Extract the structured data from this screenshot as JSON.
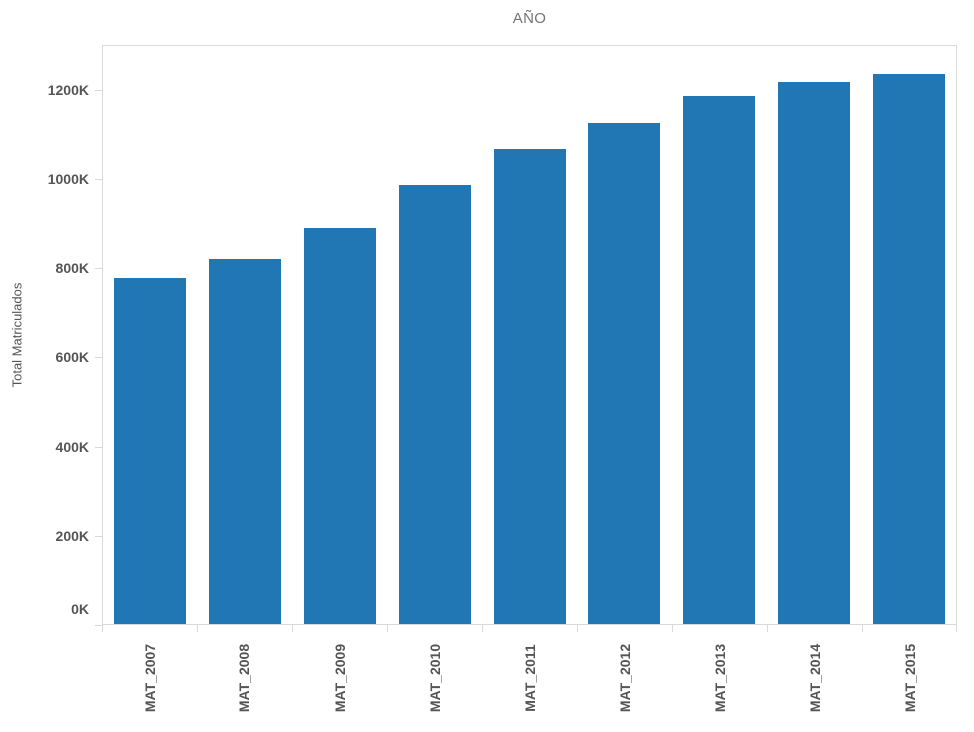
{
  "chart_data": {
    "type": "bar",
    "title": "AÑO",
    "xlabel": "",
    "ylabel": "Total Matriculados",
    "categories": [
      "MAT_2007",
      "MAT_2008",
      "MAT_2009",
      "MAT_2010",
      "MAT_2011",
      "MAT_2012",
      "MAT_2013",
      "MAT_2014",
      "MAT_2015"
    ],
    "values": [
      778000,
      820000,
      890000,
      987000,
      1069000,
      1127000,
      1188000,
      1218000,
      1236000
    ],
    "y_ticks": [
      {
        "value": 0,
        "label": "0K"
      },
      {
        "value": 200000,
        "label": "200K"
      },
      {
        "value": 400000,
        "label": "400K"
      },
      {
        "value": 600000,
        "label": "600K"
      },
      {
        "value": 800000,
        "label": "800K"
      },
      {
        "value": 1000000,
        "label": "1000K"
      },
      {
        "value": 1200000,
        "label": "1200K"
      }
    ],
    "ylim": [
      0,
      1300000
    ],
    "grid": false,
    "legend": null
  },
  "colors": {
    "bar": "#2077b4",
    "axis_line": "#d9d9d9",
    "tick_text": "#555555",
    "title_text": "#737373"
  }
}
